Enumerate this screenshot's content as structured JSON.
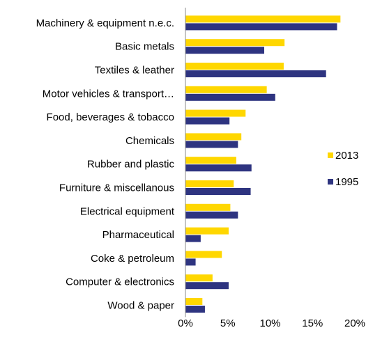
{
  "chart_data": {
    "type": "bar",
    "orientation": "horizontal",
    "categories": [
      "Machinery & equipment n.e.c.",
      "Basic metals",
      "Textiles & leather",
      "Motor vehicles & transport…",
      "Food, beverages & tobacco",
      "Chemicals",
      "Rubber and plastic",
      "Furniture & miscellanous",
      "Electrical equipment",
      "Pharmaceutical",
      "Coke & petroleum",
      "Computer & electronics",
      "Wood & paper"
    ],
    "series": [
      {
        "name": "2013",
        "color": "#FFD700",
        "values": [
          18.3,
          11.7,
          11.6,
          9.6,
          7.1,
          6.6,
          6.0,
          5.7,
          5.3,
          5.1,
          4.3,
          3.2,
          2.0
        ]
      },
      {
        "name": "1995",
        "color": "#2E3480",
        "values": [
          17.9,
          9.3,
          16.6,
          10.6,
          5.2,
          6.2,
          7.8,
          7.7,
          6.2,
          1.8,
          1.2,
          5.1,
          2.3
        ]
      }
    ],
    "xlim": [
      0,
      20
    ],
    "xticks": [
      "0%",
      "5%",
      "10%",
      "15%",
      "20%"
    ],
    "legend_position": "right",
    "grid": false
  }
}
